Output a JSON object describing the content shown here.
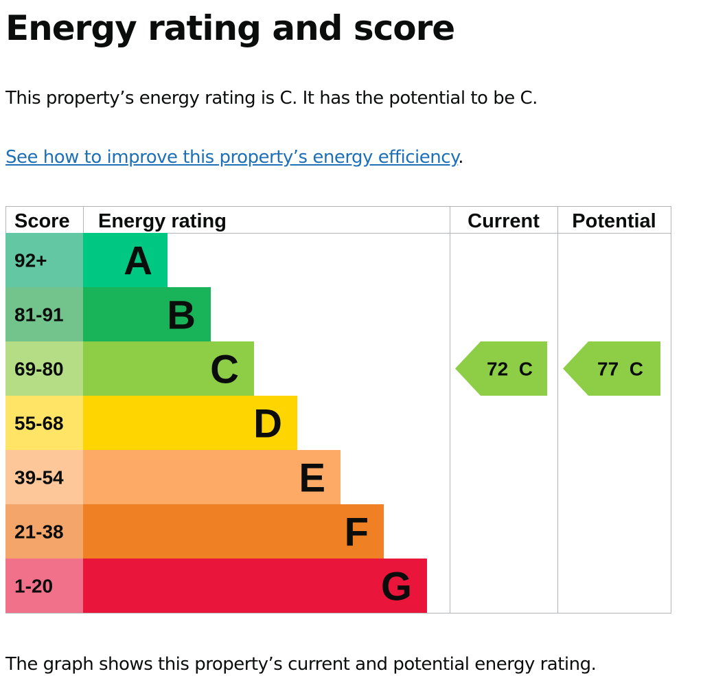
{
  "page": {
    "title": "Energy rating and score",
    "intro": "This property’s energy rating is C. It has the potential to be C.",
    "improve_link": "See how to improve this property’s energy efficiency",
    "improve_suffix": ".",
    "caption": "The graph shows this property’s current and potential energy rating."
  },
  "chart_data": {
    "type": "table",
    "columns": [
      "Score",
      "Energy rating",
      "Current",
      "Potential"
    ],
    "bands": [
      {
        "score": "92+",
        "letter": "A",
        "color": "#00c781",
        "score_bg": "#64c7a4"
      },
      {
        "score": "81-91",
        "letter": "B",
        "color": "#19b459",
        "score_bg": "#72c38c"
      },
      {
        "score": "69-80",
        "letter": "C",
        "color": "#8dce46",
        "score_bg": "#b4dd86"
      },
      {
        "score": "55-68",
        "letter": "D",
        "color": "#ffd500",
        "score_bg": "#ffe466"
      },
      {
        "score": "39-54",
        "letter": "E",
        "color": "#fcaa65",
        "score_bg": "#fdc79a"
      },
      {
        "score": "21-38",
        "letter": "F",
        "color": "#ef8023",
        "score_bg": "#f4a66a"
      },
      {
        "score": "1-20",
        "letter": "G",
        "color": "#e9153b",
        "score_bg": "#f1718a"
      }
    ],
    "current": {
      "score": 72,
      "letter": "C",
      "label": "72  C"
    },
    "potential": {
      "score": 77,
      "letter": "C",
      "label": "77  C"
    }
  }
}
